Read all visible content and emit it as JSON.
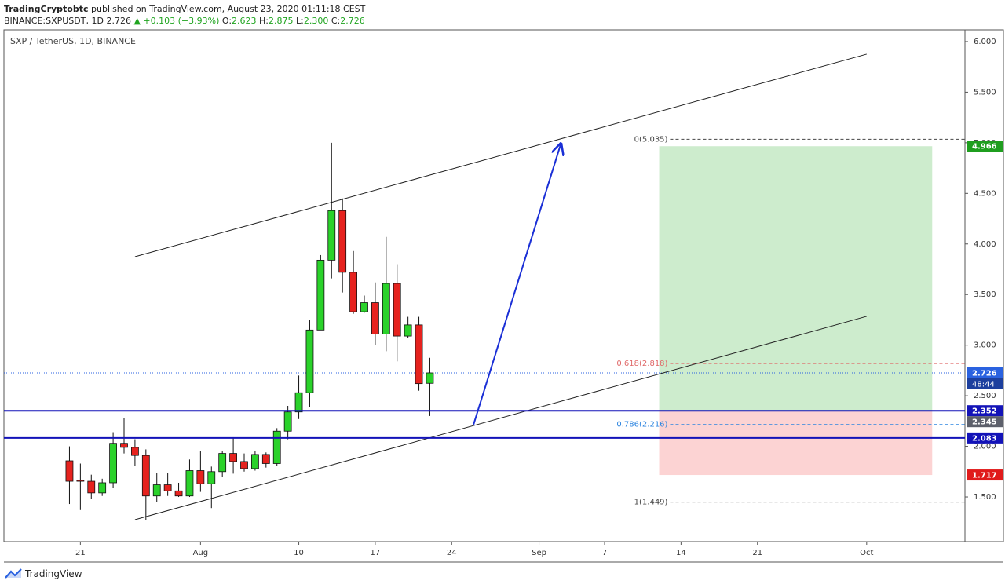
{
  "header": {
    "author": "TradingCryptobtc",
    "published": "published on TradingView.com, August 23, 2020 01:11:18 CEST",
    "symbol": "BINANCE:SXPUSDT, 1D",
    "last": "2.726",
    "change": "▲ +0.103 (+3.93%)",
    "ohlc": [
      [
        "O:",
        "2.623"
      ],
      [
        "H:",
        "2.875"
      ],
      [
        "L:",
        "2.300"
      ],
      [
        "C:",
        "2.726"
      ]
    ]
  },
  "footer": {
    "brand": "TradingView"
  },
  "chart_data": {
    "type": "candlestick",
    "title": "SXP / TetherUS, 1D, BINANCE",
    "x": [
      "2020-07-20",
      "2020-07-21",
      "2020-07-22",
      "2020-07-23",
      "2020-07-24",
      "2020-07-25",
      "2020-07-26",
      "2020-07-27",
      "2020-07-28",
      "2020-07-29",
      "2020-07-30",
      "2020-07-31",
      "2020-08-01",
      "2020-08-02",
      "2020-08-03",
      "2020-08-04",
      "2020-08-05",
      "2020-08-06",
      "2020-08-07",
      "2020-08-08",
      "2020-08-09",
      "2020-08-10",
      "2020-08-11",
      "2020-08-12",
      "2020-08-13",
      "2020-08-14",
      "2020-08-15",
      "2020-08-16",
      "2020-08-17",
      "2020-08-18",
      "2020-08-19",
      "2020-08-20",
      "2020-08-21",
      "2020-08-22"
    ],
    "open": [
      1.857,
      1.665,
      1.655,
      1.54,
      1.64,
      2.03,
      1.99,
      1.91,
      1.51,
      1.62,
      1.56,
      1.51,
      1.76,
      1.63,
      1.75,
      1.93,
      1.85,
      1.78,
      1.92,
      1.83,
      2.15,
      2.34,
      2.53,
      3.15,
      3.84,
      4.33,
      3.72,
      3.33,
      3.42,
      3.11,
      3.61,
      3.09,
      3.2,
      2.623
    ],
    "high": [
      2.0,
      1.83,
      1.72,
      1.68,
      2.14,
      2.28,
      2.07,
      1.97,
      1.74,
      1.74,
      1.64,
      1.87,
      1.95,
      1.8,
      1.95,
      2.09,
      1.93,
      1.95,
      1.94,
      2.18,
      2.4,
      2.7,
      3.25,
      3.89,
      5.0,
      4.45,
      3.93,
      3.49,
      3.62,
      4.07,
      3.8,
      3.28,
      3.28,
      2.875
    ],
    "low": [
      1.43,
      1.37,
      1.48,
      1.51,
      1.59,
      1.93,
      1.81,
      1.27,
      1.45,
      1.51,
      1.5,
      1.5,
      1.55,
      1.39,
      1.7,
      1.73,
      1.75,
      1.76,
      1.79,
      1.81,
      2.07,
      2.27,
      2.39,
      3.15,
      3.66,
      3.52,
      3.31,
      3.32,
      3.0,
      2.94,
      2.84,
      3.07,
      2.55,
      2.3
    ],
    "close": [
      1.655,
      1.655,
      1.54,
      1.64,
      2.03,
      1.99,
      1.91,
      1.51,
      1.62,
      1.56,
      1.51,
      1.76,
      1.63,
      1.75,
      1.93,
      1.85,
      1.78,
      1.92,
      1.83,
      2.15,
      2.34,
      2.53,
      3.15,
      3.84,
      4.33,
      3.72,
      3.33,
      3.42,
      3.11,
      3.61,
      3.09,
      3.2,
      2.62,
      2.726
    ],
    "up_color": "#2ad22a",
    "down_color": "#e6221e",
    "xlim": [
      "2020-07-14",
      "2020-10-10"
    ],
    "xticks": [
      {
        "value": "2020-07-21",
        "label": "21"
      },
      {
        "value": "2020-08-01",
        "label": "Aug"
      },
      {
        "value": "2020-08-10",
        "label": "10"
      },
      {
        "value": "2020-08-17",
        "label": "17"
      },
      {
        "value": "2020-08-24",
        "label": "24"
      },
      {
        "value": "2020-09-01",
        "label": "Sep"
      },
      {
        "value": "2020-09-07",
        "label": "7"
      },
      {
        "value": "2020-09-14",
        "label": "14"
      },
      {
        "value": "2020-09-21",
        "label": "21"
      },
      {
        "value": "2020-10-01",
        "label": "Oct"
      }
    ],
    "ylim": [
      1.058,
      6.116
    ],
    "yticks": [
      {
        "value": 1.5,
        "label": "1.500"
      },
      {
        "value": 2,
        "label": "2.000"
      },
      {
        "value": 2.5,
        "label": "2.500"
      },
      {
        "value": 3,
        "label": "3.000"
      },
      {
        "value": 3.5,
        "label": "3.500"
      },
      {
        "value": 4,
        "label": "4.000"
      },
      {
        "value": 4.5,
        "label": "4.500"
      },
      {
        "value": 5,
        "label": "5.000"
      },
      {
        "value": 5.5,
        "label": "5.500"
      },
      {
        "value": 6,
        "label": "6.000"
      }
    ],
    "grid": false,
    "trendlines": [
      {
        "x": [
          "2020-07-26",
          "2020-10-01"
        ],
        "y": [
          3.874,
          5.876
        ],
        "color": "#222222"
      },
      {
        "x": [
          "2020-07-26",
          "2020-10-01"
        ],
        "y": [
          1.275,
          3.285
        ],
        "color": "#222222"
      }
    ],
    "arrow": {
      "x": [
        "2020-08-26",
        "2020-09-03"
      ],
      "y": [
        2.214,
        4.991
      ],
      "color": "#1a2fd6"
    },
    "fib_start": "2020-09-13",
    "fib_levels": [
      {
        "value": 5.035,
        "label": "0(5.035)",
        "color": "#444444"
      },
      {
        "value": 2.818,
        "label": "0.618(2.818)",
        "color": "#e06a6a"
      },
      {
        "value": 2.216,
        "label": "0.786(2.216)",
        "color": "#2f86e0"
      },
      {
        "value": 1.449,
        "label": "1(1.449)",
        "color": "#444444"
      }
    ],
    "position": {
      "start": "2020-09-12",
      "end": "2020-10-07",
      "entry": 2.352,
      "target": {
        "value": 4.966,
        "label": "4.966",
        "color": "#1f9e1f"
      },
      "stop": {
        "value": 1.717,
        "label": "1.717",
        "color": "#e01b1b"
      }
    },
    "price_lines": [
      {
        "value": 2.352,
        "label": "2.352",
        "color": "#1313b8"
      },
      {
        "value": 2.083,
        "label": "2.083",
        "color": "#1313b8"
      }
    ],
    "last_price": {
      "value": 2.726,
      "label": "2.726",
      "countdown": "48:44",
      "color": "#2a62e0"
    },
    "axis_labels": [
      {
        "value": 2.345,
        "label": "2.345",
        "color": "#5d606b"
      }
    ]
  }
}
